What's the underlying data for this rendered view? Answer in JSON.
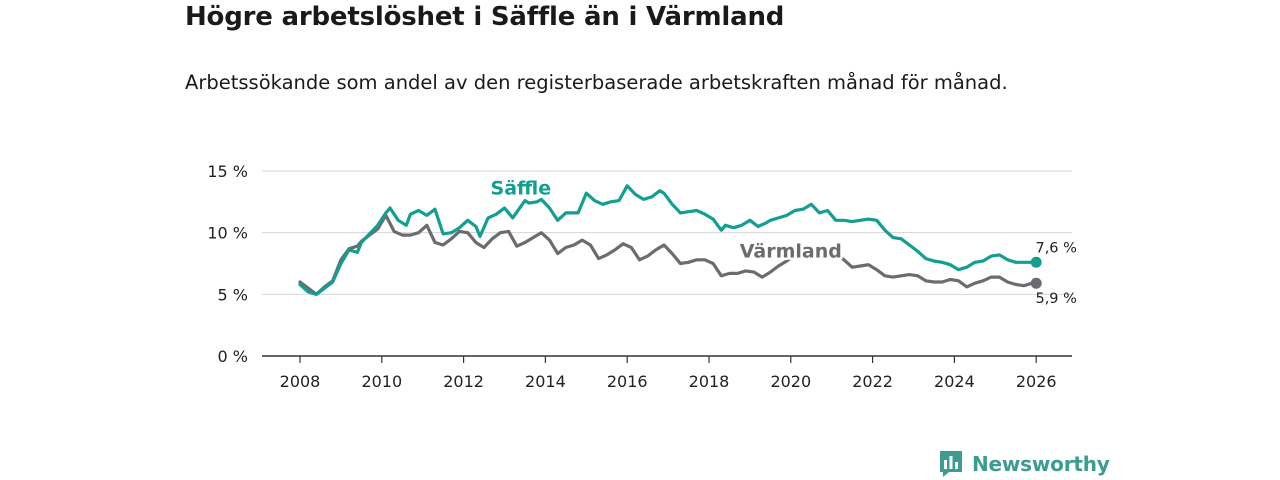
{
  "header": {
    "title": "Högre arbetslöshet i Säffle än i Värmland",
    "subtitle": "Arbetssökande som andel av den registerbaserade arbetskraften månad för månad."
  },
  "brand": {
    "name": "Newsworthy",
    "color": "#3c9c90"
  },
  "chart_data": {
    "type": "line",
    "title": "Högre arbetslöshet i Säffle än i Värmland",
    "subtitle": "Arbetssökande som andel av den registerbaserade arbetskraften månad för månad.",
    "xlabel": "",
    "ylabel": "",
    "xlim": [
      2007.5,
      2027
    ],
    "ylim": [
      0,
      15
    ],
    "grid": true,
    "x_ticks": [
      {
        "value": 2008,
        "label": "2008"
      },
      {
        "value": 2010,
        "label": "2010"
      },
      {
        "value": 2012,
        "label": "2012"
      },
      {
        "value": 2014,
        "label": "2014"
      },
      {
        "value": 2016,
        "label": "2016"
      },
      {
        "value": 2018,
        "label": "2018"
      },
      {
        "value": 2020,
        "label": "2020"
      },
      {
        "value": 2022,
        "label": "2022"
      },
      {
        "value": 2024,
        "label": "2024"
      },
      {
        "value": 2026,
        "label": "2026"
      }
    ],
    "y_ticks": [
      {
        "value": 0,
        "label": "0 %"
      },
      {
        "value": 5,
        "label": "5 %"
      },
      {
        "value": 10,
        "label": "10 %"
      },
      {
        "value": 15,
        "label": "15 %"
      }
    ],
    "series": [
      {
        "name": "Säffle",
        "color": "#129e91",
        "end_label": "7,6 %",
        "x": [
          2008.0,
          2008.2,
          2008.4,
          2008.6,
          2008.8,
          2009.0,
          2009.2,
          2009.4,
          2009.5,
          2009.7,
          2009.9,
          2010.1,
          2010.2,
          2010.4,
          2010.6,
          2010.7,
          2010.9,
          2011.1,
          2011.3,
          2011.5,
          2011.7,
          2011.9,
          2012.1,
          2012.3,
          2012.4,
          2012.6,
          2012.8,
          2013.0,
          2013.2,
          2013.5,
          2013.6,
          2013.8,
          2013.9,
          2014.1,
          2014.2,
          2014.3,
          2014.5,
          2014.8,
          2015.0,
          2015.2,
          2015.4,
          2015.6,
          2015.8,
          2016.0,
          2016.2,
          2016.4,
          2016.6,
          2016.8,
          2016.9,
          2017.1,
          2017.3,
          2017.5,
          2017.7,
          2017.9,
          2018.1,
          2018.3,
          2018.4,
          2018.6,
          2018.8,
          2019.0,
          2019.2,
          2019.4,
          2019.5,
          2019.7,
          2019.9,
          2020.1,
          2020.3,
          2020.5,
          2020.7,
          2020.9,
          2021.1,
          2021.3,
          2021.5,
          2021.7,
          2021.9,
          2022.1,
          2022.3,
          2022.5,
          2022.7,
          2022.9,
          2023.1,
          2023.3,
          2023.5,
          2023.7,
          2023.9,
          2024.1,
          2024.3,
          2024.5,
          2024.7,
          2024.9,
          2025.1,
          2025.3,
          2025.5,
          2025.7,
          2025.9,
          2026.0
        ],
        "y": [
          5.8,
          5.2,
          5.0,
          5.5,
          6.0,
          7.5,
          8.6,
          8.4,
          9.2,
          9.9,
          10.6,
          11.6,
          12.0,
          11.0,
          10.6,
          11.5,
          11.8,
          11.4,
          11.9,
          9.9,
          10.0,
          10.4,
          11.0,
          10.5,
          9.7,
          11.2,
          11.5,
          12.0,
          11.2,
          12.6,
          12.4,
          12.5,
          12.7,
          12.0,
          11.5,
          11.0,
          11.6,
          11.6,
          13.2,
          12.6,
          12.3,
          12.5,
          12.6,
          13.8,
          13.1,
          12.7,
          12.9,
          13.4,
          13.2,
          12.3,
          11.6,
          11.7,
          11.8,
          11.5,
          11.1,
          10.2,
          10.6,
          10.4,
          10.6,
          11.0,
          10.5,
          10.8,
          11.0,
          11.2,
          11.4,
          11.8,
          11.9,
          12.3,
          11.6,
          11.8,
          11.0,
          11.0,
          10.9,
          11.0,
          11.1,
          11.0,
          10.2,
          9.6,
          9.5,
          9.0,
          8.5,
          7.9,
          7.7,
          7.6,
          7.4,
          7.0,
          7.2,
          7.6,
          7.7,
          8.1,
          8.2,
          7.8,
          7.6,
          7.6,
          7.6,
          7.6
        ]
      },
      {
        "name": "Värmland",
        "color": "#6b6b70",
        "end_label": "5,9 %",
        "x": [
          2008.0,
          2008.2,
          2008.4,
          2008.6,
          2008.8,
          2009.0,
          2009.2,
          2009.4,
          2009.5,
          2009.7,
          2009.9,
          2010.1,
          2010.3,
          2010.5,
          2010.7,
          2010.9,
          2011.1,
          2011.3,
          2011.5,
          2011.7,
          2011.9,
          2012.1,
          2012.3,
          2012.5,
          2012.7,
          2012.9,
          2013.1,
          2013.3,
          2013.5,
          2013.7,
          2013.9,
          2014.1,
          2014.3,
          2014.5,
          2014.7,
          2014.9,
          2015.1,
          2015.3,
          2015.5,
          2015.7,
          2015.9,
          2016.1,
          2016.3,
          2016.5,
          2016.7,
          2016.9,
          2017.1,
          2017.3,
          2017.5,
          2017.7,
          2017.9,
          2018.1,
          2018.3,
          2018.5,
          2018.7,
          2018.9,
          2019.1,
          2019.3,
          2019.5,
          2019.7,
          2019.9,
          2020.1,
          2020.3,
          2020.5,
          2020.7,
          2020.9,
          2021.1,
          2021.3,
          2021.5,
          2021.7,
          2021.9,
          2022.1,
          2022.3,
          2022.5,
          2022.7,
          2022.9,
          2023.1,
          2023.3,
          2023.5,
          2023.7,
          2023.9,
          2024.1,
          2024.3,
          2024.5,
          2024.7,
          2024.9,
          2025.1,
          2025.3,
          2025.5,
          2025.7,
          2025.9,
          2026.0
        ],
        "y": [
          6.0,
          5.5,
          5.0,
          5.6,
          6.1,
          7.8,
          8.7,
          8.9,
          9.3,
          9.8,
          10.3,
          11.4,
          10.1,
          9.8,
          9.8,
          10.0,
          10.6,
          9.2,
          9.0,
          9.5,
          10.1,
          10.0,
          9.2,
          8.8,
          9.5,
          10.0,
          10.1,
          8.9,
          9.2,
          9.6,
          10.0,
          9.4,
          8.3,
          8.8,
          9.0,
          9.4,
          9.0,
          7.9,
          8.2,
          8.6,
          9.1,
          8.8,
          7.8,
          8.1,
          8.6,
          9.0,
          8.3,
          7.5,
          7.6,
          7.8,
          7.8,
          7.5,
          6.5,
          6.7,
          6.7,
          6.9,
          6.8,
          6.4,
          6.8,
          7.3,
          7.7,
          8.2,
          8.5,
          8.6,
          8.8,
          8.7,
          8.3,
          7.8,
          7.2,
          7.3,
          7.4,
          7.0,
          6.5,
          6.4,
          6.5,
          6.6,
          6.5,
          6.1,
          6.0,
          6.0,
          6.2,
          6.1,
          5.6,
          5.9,
          6.1,
          6.4,
          6.4,
          6.0,
          5.8,
          5.7,
          5.9,
          5.9
        ]
      }
    ],
    "annotations": [
      {
        "text": "Säffle",
        "x": 2013.4,
        "y": 13.1,
        "series": "Säffle"
      },
      {
        "text": "Värmland",
        "x": 2020.0,
        "y": 8.0,
        "series": "Värmland"
      }
    ]
  }
}
